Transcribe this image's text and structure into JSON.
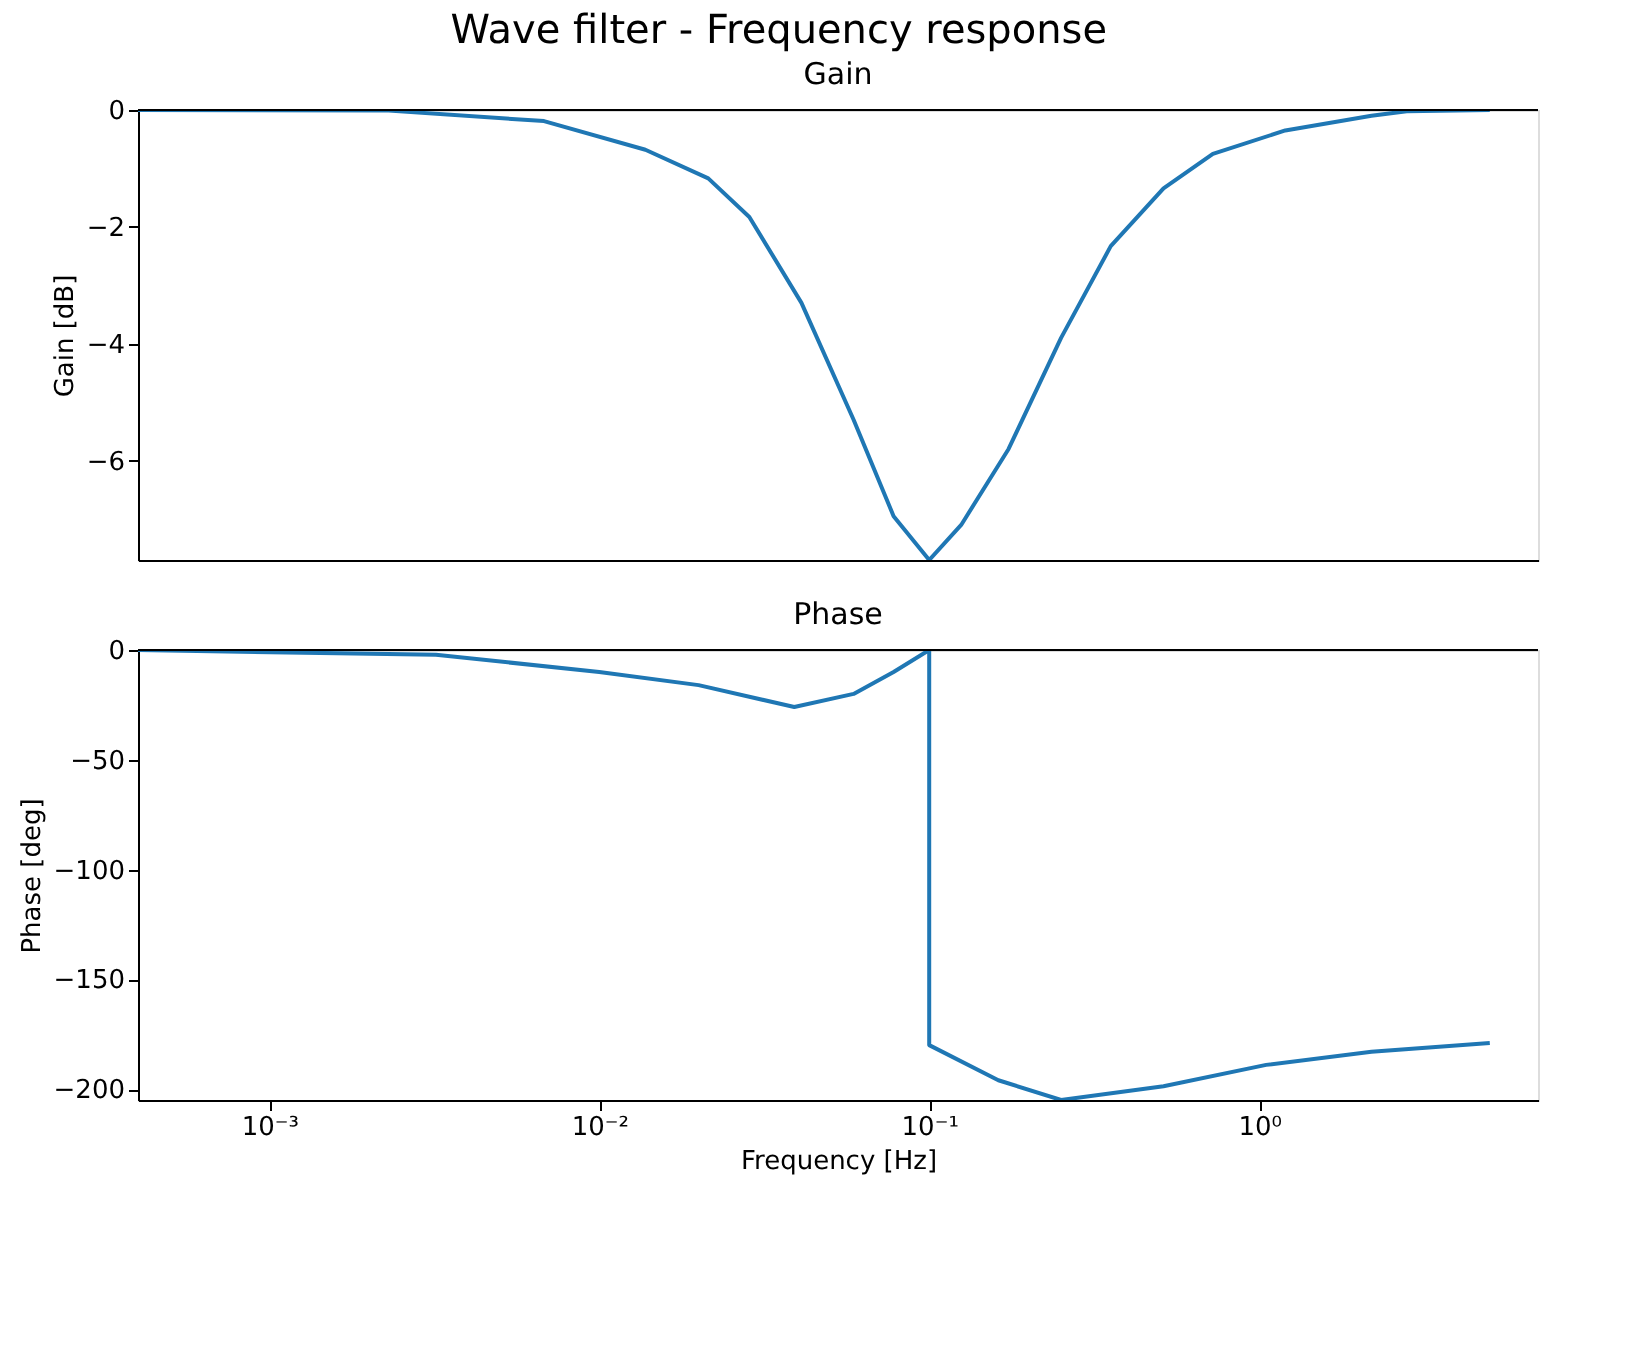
{
  "chart_data": [
    {
      "type": "line",
      "title": "Wave filter - Frequency response",
      "subtitle": "Gain",
      "ylabel": "Gain [dB]",
      "log": "x",
      "grid": false,
      "tick_labels": "y",
      "xlim": [
        0.0004,
        7
      ],
      "ylim": [
        -7.7,
        0
      ],
      "yticks": [
        {
          "value": 0,
          "label": "0"
        },
        {
          "value": -2,
          "label": "−2"
        },
        {
          "value": -4,
          "label": "−4"
        },
        {
          "value": -6,
          "label": "−6"
        }
      ],
      "series": [
        {
          "color": "#1f77b4",
          "x": [
            0.0004,
            0.0023,
            0.0068,
            0.0138,
            0.0214,
            0.0285,
            0.041,
            0.059,
            0.078,
            0.1,
            0.125,
            0.174,
            0.251,
            0.355,
            0.513,
            0.724,
            1.2,
            2.19,
            2.8,
            5
          ],
          "values": [
            0,
            -0.01,
            -0.19,
            -0.68,
            -1.17,
            -1.83,
            -3.3,
            -5.3,
            -6.95,
            -7.7,
            -7.1,
            -5.8,
            -3.9,
            -2.33,
            -1.34,
            -0.75,
            -0.35,
            -0.1,
            -0.02,
            0
          ]
        }
      ]
    },
    {
      "type": "line",
      "title": "Phase",
      "xlabel": "Frequency [Hz]",
      "ylabel": "Phase [deg]",
      "log": "x",
      "grid": false,
      "xlim": [
        0.0004,
        7
      ],
      "ylim": [
        -205,
        0
      ],
      "xticks": [
        {
          "value": 0.001,
          "label": "10⁻³"
        },
        {
          "value": 0.01,
          "label": "10⁻²"
        },
        {
          "value": 0.1,
          "label": "10⁻¹"
        },
        {
          "value": 1,
          "label": "10⁰"
        }
      ],
      "yticks": [
        {
          "value": 0,
          "label": "0"
        },
        {
          "value": -50,
          "label": "−50"
        },
        {
          "value": -100,
          "label": "−100"
        },
        {
          "value": -150,
          "label": "−150"
        },
        {
          "value": -200,
          "label": "−200"
        }
      ],
      "series": [
        {
          "color": "#1f77b4",
          "x": [
            0.0004,
            0.0032,
            0.01,
            0.02,
            0.039,
            0.059,
            0.078,
            0.1,
            0.1,
            0.162,
            0.251,
            0.513,
            1.05,
            2.19,
            5
          ],
          "values": [
            0,
            -2.2,
            -10,
            -16,
            -26,
            -20,
            -10,
            0,
            -180,
            -196,
            -205,
            -198.7,
            -189,
            -183,
            -179
          ]
        }
      ]
    }
  ]
}
